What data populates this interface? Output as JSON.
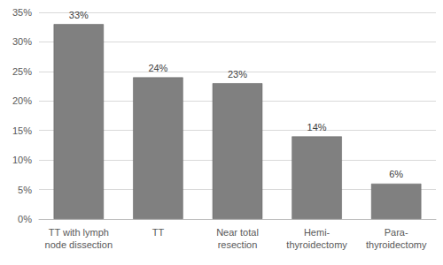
{
  "chart_data": {
    "type": "bar",
    "categories": [
      "TT with lymph\nnode dissection",
      "TT",
      "Near total\nresection",
      "Hemi-\nthyroidectomy",
      "Para-\nthyroidectomy"
    ],
    "values": [
      33,
      24,
      23,
      14,
      6
    ],
    "value_labels": [
      "33%",
      "24%",
      "23%",
      "14%",
      "6%"
    ],
    "color": "#808080",
    "ylim": [
      0,
      35
    ],
    "yticks": [
      {
        "value": 0,
        "label": "0%"
      },
      {
        "value": 5,
        "label": "5%"
      },
      {
        "value": 10,
        "label": "10%"
      },
      {
        "value": 15,
        "label": "15%"
      },
      {
        "value": 20,
        "label": "20%"
      },
      {
        "value": 25,
        "label": "25%"
      },
      {
        "value": 30,
        "label": "30%"
      },
      {
        "value": 35,
        "label": "35%"
      }
    ],
    "grid": true,
    "data_labels": true
  }
}
